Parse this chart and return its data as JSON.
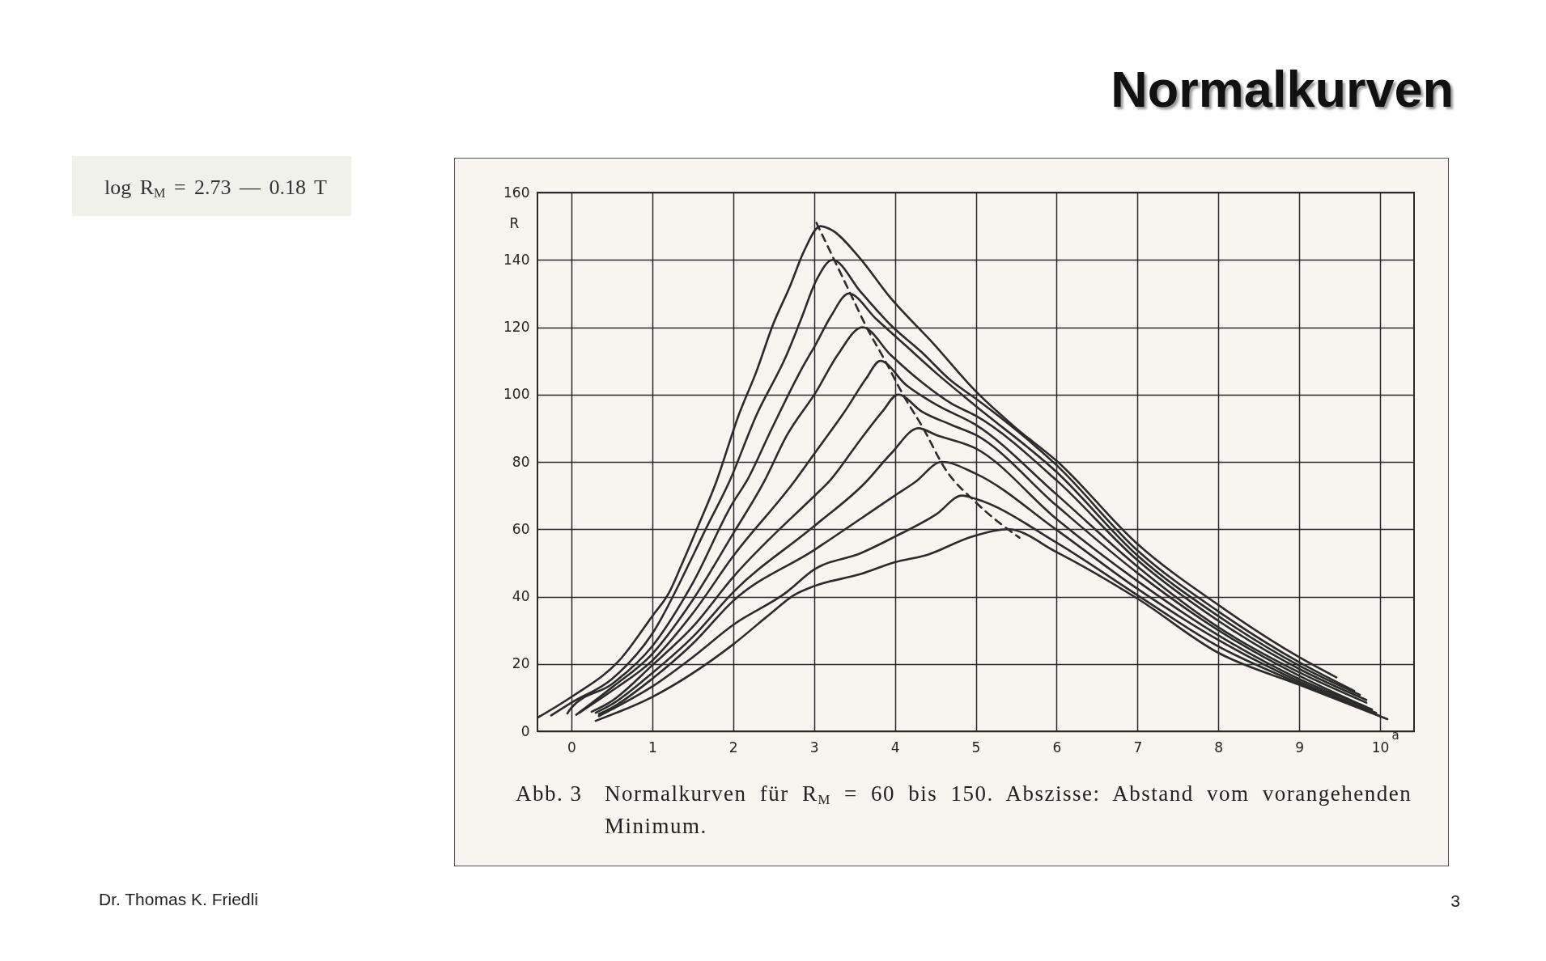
{
  "chart_data": {
    "type": "line",
    "title": "Normalkurven",
    "xlabel": "a",
    "ylabel": "R",
    "annotations": [
      "log R$_{M}$ = 2.73 — 0.18 T",
      "Abb. 3",
      "Normalkurven für R$_{M}$ = 60 bis 150. Abszisse: Abstand vom vorangehenden Minimum.",
      "Dr. Thomas K. Friedli",
      "3"
    ],
    "xlim": [
      -0.42,
      10.42
    ],
    "ylim": [
      0,
      160
    ],
    "xticks": [
      0,
      1,
      2,
      3,
      4,
      5,
      6,
      7,
      8,
      9,
      10
    ],
    "yticks": [
      0,
      20,
      40,
      60,
      80,
      100,
      120,
      140,
      160
    ],
    "grid": true,
    "line_style": "solid",
    "series": [
      {
        "color": "#2b2b2b",
        "x": [
          -0.42,
          0,
          0.62,
          1.0,
          1.21,
          1.36,
          1.55,
          1.79,
          2.07,
          2.29,
          2.49,
          2.7,
          2.88,
          3.08,
          3.21,
          3.55,
          3.95,
          4.47,
          5.0,
          5.5,
          6.0,
          7.0,
          8.0,
          9.0,
          9.46
        ],
        "values": [
          4,
          10.2,
          21.8,
          34.2,
          41.3,
          49.3,
          60,
          74,
          94,
          107,
          120.6,
          132,
          142.8,
          150,
          149,
          141,
          128.6,
          115.3,
          101,
          90,
          80.3,
          55.6,
          37.5,
          22,
          16
        ]
      },
      {
        "color": "#2b2b2b",
        "x": [
          -0.25,
          0,
          0.5,
          1,
          1.5,
          1.66,
          1.95,
          2.29,
          2.66,
          2.84,
          3.03,
          3.23,
          3.58,
          3.95,
          4.33,
          4.7,
          5.0,
          6,
          7,
          8,
          9,
          9.68
        ],
        "values": [
          4.7,
          8.5,
          15.5,
          29,
          52,
          60,
          74,
          94,
          111.7,
          122.4,
          134,
          140,
          130.4,
          120.6,
          112.6,
          104,
          98.8,
          79,
          53.7,
          35.6,
          20.5,
          12
        ]
      },
      {
        "color": "#2b2b2b",
        "x": [
          -0.05,
          0,
          0.5,
          1,
          1.5,
          2,
          2.16,
          2.47,
          2.84,
          3.03,
          3.21,
          3.43,
          3.77,
          4.14,
          4.51,
          5.0,
          6,
          7,
          8,
          9,
          9.75
        ],
        "values": [
          5.3,
          7,
          14,
          25.3,
          44,
          68,
          74,
          89.5,
          107.3,
          115.3,
          123.3,
          130,
          122.4,
          114.4,
          106.4,
          96.6,
          77,
          52.2,
          34.2,
          19.5,
          10.8
        ]
      },
      {
        "color": "#2b2b2b",
        "x": [
          0.06,
          0.5,
          1,
          1.5,
          2,
          2.38,
          2.66,
          3.03,
          3.29,
          3.6,
          3.95,
          4.33,
          4.7,
          5.0,
          6,
          7,
          8,
          9,
          9.83
        ],
        "values": [
          4.9,
          13,
          23,
          39,
          58.7,
          74,
          87.7,
          101,
          111.7,
          120,
          111.7,
          103.7,
          97.3,
          93.7,
          74.5,
          50.8,
          32.8,
          18.5,
          9.3
        ]
      },
      {
        "color": "#2b2b2b",
        "x": [
          0.1,
          0.5,
          1,
          1.5,
          2,
          2.75,
          3.03,
          3.4,
          3.64,
          3.82,
          4.14,
          4.51,
          5.0,
          6,
          7,
          8,
          9,
          9.83
        ],
        "values": [
          5.5,
          12,
          21,
          35,
          52,
          74,
          83.3,
          95.7,
          104.6,
          110,
          102.8,
          97,
          91,
          70.3,
          48.9,
          30.9,
          17.5,
          8.5
        ]
      },
      {
        "color": "#2b2b2b",
        "x": [
          0.25,
          0.5,
          1,
          1.5,
          2,
          3,
          3.18,
          3.58,
          3.84,
          4.04,
          4.33,
          4.7,
          5.0,
          6,
          7,
          8,
          9,
          9.83
        ],
        "values": [
          5.8,
          9,
          19.6,
          31,
          45.8,
          69.8,
          74,
          86.8,
          94.8,
          100,
          95,
          91,
          88,
          67,
          47,
          30,
          16.5,
          7.2
        ]
      },
      {
        "color": "#2b2b2b",
        "x": [
          0.3,
          0.5,
          1,
          1.5,
          2,
          3,
          3.64,
          3.95,
          4.29,
          4.51,
          5.0,
          6,
          7,
          8,
          9,
          9.9
        ],
        "values": [
          5.5,
          8,
          17.3,
          28,
          41.3,
          60.9,
          74,
          82.4,
          90,
          88,
          84,
          63,
          44.6,
          28.5,
          15.5,
          6.5
        ]
      },
      {
        "color": "#2b2b2b",
        "x": [
          0.34,
          0.5,
          1,
          1.5,
          2,
          3,
          4,
          4.25,
          4.58,
          5.0,
          6,
          7,
          8,
          9,
          9.95
        ],
        "values": [
          5.1,
          7,
          15.6,
          26,
          38.7,
          53.8,
          70,
          74,
          80,
          76.5,
          59.8,
          42.3,
          27.1,
          14.8,
          5.5
        ]
      },
      {
        "color": "#2b2b2b",
        "x": [
          0.34,
          0.5,
          1,
          1.5,
          2,
          2.66,
          3,
          3.58,
          4,
          4.51,
          4.83,
          5,
          6,
          7,
          8,
          9,
          10.0
        ],
        "values": [
          4.5,
          6.5,
          13.3,
          22,
          31.6,
          41.3,
          48,
          52.9,
          57.8,
          64.4,
          70,
          69,
          56,
          40.4,
          25.2,
          14.2,
          4.5
        ]
      },
      {
        "color": "#2b2b2b",
        "x": [
          0.3,
          1,
          2,
          2.47,
          2.75,
          3,
          3.58,
          4,
          4.4,
          4.95,
          5.4,
          6,
          7,
          8,
          9,
          10.09
        ],
        "values": [
          3.1,
          10.2,
          25.8,
          35.1,
          40.4,
          43.1,
          46.7,
          50.2,
          52.4,
          57.8,
          60,
          53.2,
          39.4,
          23.3,
          13.8,
          3.6
        ]
      },
      {
        "color": "#2b2b2b",
        "line_style": "dashed",
        "x": [
          3.03,
          3.25,
          3.45,
          3.65,
          3.88,
          4.1,
          4.35,
          4.62,
          5.0,
          5.54
        ],
        "values": [
          151,
          140,
          130,
          120,
          110,
          100,
          90,
          78,
          68,
          57.5
        ]
      }
    ]
  }
}
